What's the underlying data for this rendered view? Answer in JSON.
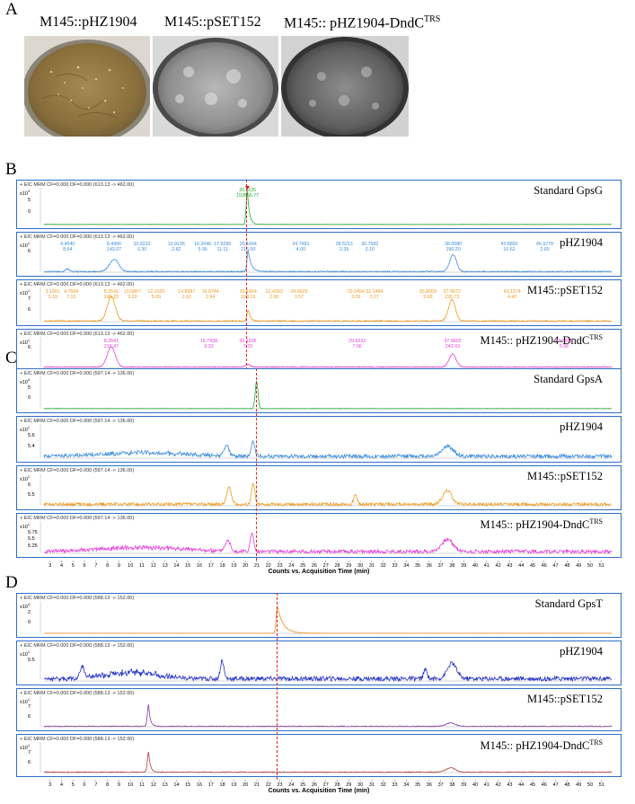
{
  "panels": {
    "A": {
      "letter": "A",
      "plates": [
        {
          "label": "M145::pHZ1904",
          "style": "brown"
        },
        {
          "label": "M145::pSET152",
          "style": "grey"
        },
        {
          "label": "M145:: pHZ1904-DndC",
          "sup": "TRS",
          "style": "dark"
        }
      ]
    },
    "B": {
      "letter": "B",
      "eic": "+ EIC MRM CF=0.000 DF=0.000 (613.13 -> 462.00)",
      "scale_label": "x10",
      "rows": [
        {
          "sample": "Standard GpsG",
          "sup": "",
          "exp": "3",
          "ticks": [
            "5",
            "0"
          ],
          "color": "#22aa33",
          "peaks": [
            {
              "rt": "20.1125",
              "area": "153656.77"
            }
          ]
        },
        {
          "sample": "pHZ1904",
          "sup": "",
          "exp": "1",
          "ticks": [
            "6"
          ],
          "color": "#3b8ddc",
          "peaks": [
            {
              "rt": "4.4540",
              "area": "8.64"
            },
            {
              "rt": "8.4966",
              "area": "143.07"
            },
            {
              "rt": "10.9222",
              "area": "3.30"
            },
            {
              "rt": "13.9136",
              "area": "2.82"
            },
            {
              "rt": "16.2046",
              "area": "5.95"
            },
            {
              "rt": "17.9295",
              "area": "11.11"
            },
            {
              "rt": "20.1664",
              "area": "215.00"
            },
            {
              "rt": "24.7481",
              "area": "4.00"
            },
            {
              "rt": "28.5213",
              "area": "2.35"
            },
            {
              "rt": "30.7582",
              "area": "3.10"
            },
            {
              "rt": "38.0080",
              "area": "190.20"
            },
            {
              "rt": "42.8892",
              "area": "10.62"
            },
            {
              "rt": "45.9778",
              "area": "2.65"
            }
          ]
        },
        {
          "sample": "M145::pSET152",
          "sup": "",
          "exp": "1",
          "ticks": [
            "7",
            "6"
          ],
          "color": "#ee9a1f",
          "peaks": [
            {
              "rt": "3.1601",
              "area": "3.19"
            },
            {
              "rt": "4.7664",
              "area": "7.10"
            },
            {
              "rt": "8.2541",
              "area": "245.33"
            },
            {
              "rt": "10.0867",
              "area": "3.33"
            },
            {
              "rt": "12.1620",
              "area": "5.09"
            },
            {
              "rt": "14.8087",
              "area": "2.92"
            },
            {
              "rt": "16.8744",
              "area": "2.94"
            },
            {
              "rt": "20.1664",
              "area": "103.16"
            },
            {
              "rt": "22.4303",
              "area": "2.90"
            },
            {
              "rt": "24.6020",
              "area": "3.57"
            },
            {
              "rt": "29.5454",
              "area": "3.26"
            },
            {
              "rt": "31.1484",
              "area": "3.27"
            },
            {
              "rt": "35.8059",
              "area": "3.65"
            },
            {
              "rt": "37.9072",
              "area": "226.73"
            },
            {
              "rt": "43.1374",
              "area": "4.42"
            }
          ]
        },
        {
          "sample": "M145:: pHZ1904-DndC",
          "sup": "TRS",
          "exp": "1",
          "ticks": [
            "6"
          ],
          "color": "#e63fd7",
          "peaks": [
            {
              "rt": "8.2541",
              "area": "215.47"
            },
            {
              "rt": "16.7438",
              "area": "9.32"
            },
            {
              "rt": "20.1395",
              "area": "7.23"
            },
            {
              "rt": "29.6532",
              "area": "7.06"
            },
            {
              "rt": "37.9602",
              "area": "242.03"
            },
            {
              "rt": "47.6565",
              "area": "5.96"
            }
          ]
        }
      ]
    },
    "C": {
      "letter": "C",
      "eic": "+ EIC MRM CF=0.000 DF=0.000 (597.14 -> 136.00)",
      "scale_label": "x10",
      "rows": [
        {
          "sample": "Standard GpsA",
          "sup": "",
          "exp": "4",
          "ticks": [
            "5",
            "0"
          ],
          "color": "#22aa33"
        },
        {
          "sample": "pHZ1904",
          "sup": "",
          "exp": "1",
          "ticks": [
            "5.6",
            "5.4"
          ],
          "color": "#3b8ddc"
        },
        {
          "sample": "M145::pSET152",
          "sup": "",
          "exp": "1",
          "ticks": [
            "6",
            "5.5"
          ],
          "color": "#ee9a1f"
        },
        {
          "sample": "M145:: pHZ1904-DndC",
          "sup": "TRS",
          "exp": "1",
          "ticks": [
            "5.75",
            "5.5",
            "5.25"
          ],
          "color": "#e63fd7"
        }
      ]
    },
    "D": {
      "letter": "D",
      "eic": "+ EIC MRM CF=0.000 DF=0.000 (588.13 -> 152.00)",
      "scale_label": "x10",
      "rows": [
        {
          "sample": "Standard GpsT",
          "sup": "",
          "exp": "4",
          "ticks": [
            "2",
            "0"
          ],
          "color": "#ee8a1f"
        },
        {
          "sample": "pHZ1904",
          "sup": "",
          "exp": "1",
          "ticks": [
            "5.5"
          ],
          "color": "#2330c8"
        },
        {
          "sample": "M145::pSET152",
          "sup": "",
          "exp": "1",
          "ticks": [
            "7",
            "6"
          ],
          "color": "#8a3aa0"
        },
        {
          "sample": "M145:: pHZ1904-DndC",
          "sup": "TRS",
          "exp": "1",
          "ticks": [
            "7",
            "6"
          ],
          "color": "#b0403a"
        }
      ]
    },
    "xaxis": {
      "title": "Counts vs. Acquisition Time (min)",
      "ticks": [
        "3",
        "4",
        "5",
        "6",
        "7",
        "8",
        "9",
        "10",
        "11",
        "12",
        "13",
        "14",
        "15",
        "16",
        "17",
        "18",
        "19",
        "20",
        "21",
        "22",
        "23",
        "24",
        "25",
        "26",
        "27",
        "28",
        "29",
        "30",
        "31",
        "32",
        "33",
        "34",
        "35",
        "36",
        "37",
        "38",
        "39",
        "40",
        "41",
        "42",
        "43",
        "44",
        "45",
        "46",
        "47",
        "48",
        "49",
        "50",
        "51"
      ]
    },
    "markers": {
      "B": 20.1,
      "C": 20.9,
      "D": 22.7
    }
  }
}
